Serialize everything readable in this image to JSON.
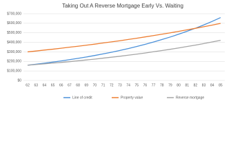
{
  "chart_data": {
    "type": "line",
    "title": "Taking Out A Reverse Mortgage Early Vs. Waiting",
    "categories": [
      "62",
      "63",
      "64",
      "65",
      "66",
      "67",
      "68",
      "69",
      "70",
      "71",
      "72",
      "73",
      "74",
      "75",
      "76",
      "77",
      "78",
      "79",
      "80",
      "81",
      "82",
      "83",
      "84",
      "85"
    ],
    "series": [
      {
        "name": "Line of credit",
        "color": "#4a90d9",
        "values": [
          160000,
          170000,
          181000,
          193000,
          205000,
          218000,
          232000,
          246000,
          262000,
          279000,
          296000,
          315000,
          335000,
          356000,
          379000,
          403000,
          429000,
          456000,
          485000,
          516000,
          548000,
          583000,
          620000,
          660000
        ]
      },
      {
        "name": "Property value",
        "color": "#ed7d31",
        "values": [
          300000,
          309000,
          319000,
          328000,
          338000,
          349000,
          359000,
          370000,
          381000,
          393000,
          405000,
          417000,
          430000,
          443000,
          457000,
          471000,
          485000,
          500000,
          515000,
          531000,
          547000,
          564000,
          581000,
          599000
        ]
      },
      {
        "name": "Reverse mortgage",
        "color": "#a5a5a5",
        "values": [
          160000,
          167000,
          174000,
          182000,
          189000,
          197000,
          206000,
          215000,
          224000,
          234000,
          244000,
          254000,
          265000,
          276000,
          288000,
          301000,
          314000,
          327000,
          341000,
          356000,
          371000,
          387000,
          404000,
          421000
        ]
      }
    ],
    "ylim": [
      0,
      700000
    ],
    "yticks": [
      {
        "value": 0,
        "label": "$0"
      },
      {
        "value": 100000,
        "label": "$100,000"
      },
      {
        "value": 200000,
        "label": "$200,000"
      },
      {
        "value": 300000,
        "label": "$300,000"
      },
      {
        "value": 400000,
        "label": "$400,000"
      },
      {
        "value": 500000,
        "label": "$500,000"
      },
      {
        "value": 600000,
        "label": "$600,000"
      },
      {
        "value": 700000,
        "label": "$700,000"
      }
    ],
    "grid": true,
    "legend": "bottom"
  }
}
